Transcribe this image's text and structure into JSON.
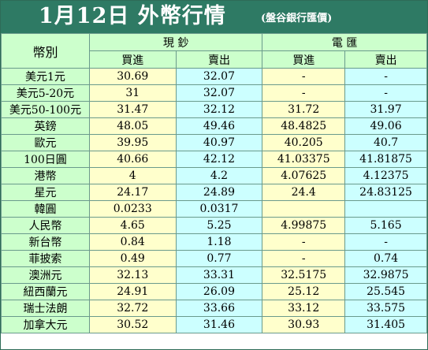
{
  "title": "1月12日 外幣行情",
  "subtitle": "(盤谷銀行匯價)",
  "headers": {
    "currency": "幣別",
    "cash": "現 鈔",
    "telegraphic": "電 匯",
    "buy": "買進",
    "sell": "賣出"
  },
  "rows": [
    {
      "currency": "美元1元",
      "cash_buy": "30.69",
      "cash_sell": "32.07",
      "tt_buy": "-",
      "tt_sell": "-"
    },
    {
      "currency": "美元5-20元",
      "cash_buy": "31",
      "cash_sell": "32.07",
      "tt_buy": "-",
      "tt_sell": "-"
    },
    {
      "currency": "美元50-100元",
      "cash_buy": "31.47",
      "cash_sell": "32.12",
      "tt_buy": "31.72",
      "tt_sell": "31.97"
    },
    {
      "currency": "英鎊",
      "cash_buy": "48.05",
      "cash_sell": "49.46",
      "tt_buy": "48.4825",
      "tt_sell": "49.06"
    },
    {
      "currency": "歐元",
      "cash_buy": "39.95",
      "cash_sell": "40.97",
      "tt_buy": "40.205",
      "tt_sell": "40.7"
    },
    {
      "currency": "100日圓",
      "cash_buy": "40.66",
      "cash_sell": "42.12",
      "tt_buy": "41.03375",
      "tt_sell": "41.81875"
    },
    {
      "currency": "港幣",
      "cash_buy": "4",
      "cash_sell": "4.2",
      "tt_buy": "4.07625",
      "tt_sell": "4.12375"
    },
    {
      "currency": "星元",
      "cash_buy": "24.17",
      "cash_sell": "24.89",
      "tt_buy": "24.4",
      "tt_sell": "24.83125"
    },
    {
      "currency": "韓圓",
      "cash_buy": "0.0233",
      "cash_sell": "0.0317",
      "tt_buy": "",
      "tt_sell": ""
    },
    {
      "currency": "人民幣",
      "cash_buy": "4.65",
      "cash_sell": "5.25",
      "tt_buy": "4.99875",
      "tt_sell": "5.165"
    },
    {
      "currency": "新台幣",
      "cash_buy": "0.84",
      "cash_sell": "1.18",
      "tt_buy": "-",
      "tt_sell": "-"
    },
    {
      "currency": "菲披索",
      "cash_buy": "0.49",
      "cash_sell": "0.77",
      "tt_buy": "-",
      "tt_sell": "0.74"
    },
    {
      "currency": "澳洲元",
      "cash_buy": "32.13",
      "cash_sell": "33.31",
      "tt_buy": "32.5175",
      "tt_sell": "32.9875"
    },
    {
      "currency": "紐西蘭元",
      "cash_buy": "24.91",
      "cash_sell": "26.09",
      "tt_buy": "25.12",
      "tt_sell": "25.545"
    },
    {
      "currency": "瑞士法朗",
      "cash_buy": "32.72",
      "cash_sell": "33.66",
      "tt_buy": "33.12",
      "tt_sell": "33.575"
    },
    {
      "currency": "加拿大元",
      "cash_buy": "30.52",
      "cash_sell": "31.46",
      "tt_buy": "30.93",
      "tt_sell": "31.405"
    }
  ],
  "colors": {
    "header_bg": "#2e7a64",
    "currency_bg": "#ccffcc",
    "value_bg": "#ffffcc",
    "value_alt_bg": "#ccffff"
  }
}
